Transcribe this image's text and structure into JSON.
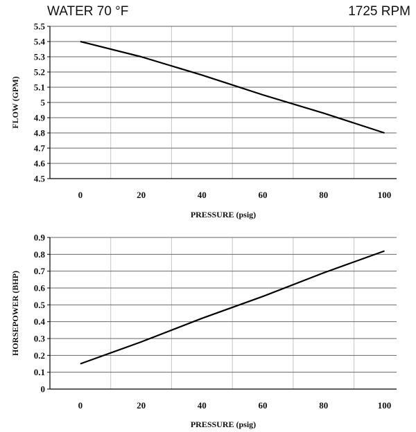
{
  "header": {
    "left": "WATER 70  °F",
    "right": "1725 RPM"
  },
  "chart_data": [
    {
      "type": "line",
      "xlabel": "PRESSURE (psig)",
      "ylabel": "FLOW (GPM)",
      "xlim": [
        -10,
        104
      ],
      "ylim": [
        4.5,
        5.5
      ],
      "x_ticks": [
        0,
        20,
        40,
        60,
        80,
        100
      ],
      "y_ticks": [
        4.5,
        4.6,
        4.7,
        4.8,
        4.9,
        5,
        5.1,
        5.2,
        5.3,
        5.4,
        5.5
      ],
      "y_tick_labels": [
        "4.5",
        "4.6",
        "4.7",
        "4.8",
        "4.9",
        "5",
        "5.1",
        "5.2",
        "5.3",
        "5.4",
        "5.5"
      ],
      "grid": true,
      "series": [
        {
          "x": [
            0,
            20,
            40,
            60,
            80,
            100
          ],
          "y": [
            5.4,
            5.3,
            5.18,
            5.05,
            4.93,
            4.8
          ],
          "color": "#000000"
        }
      ]
    },
    {
      "type": "line",
      "xlabel": "PRESSURE (psig)",
      "ylabel": "HORSEPOWER (BHP)",
      "xlim": [
        -10,
        104
      ],
      "ylim": [
        0,
        0.9
      ],
      "x_ticks": [
        0,
        20,
        40,
        60,
        80,
        100
      ],
      "y_ticks": [
        0,
        0.1,
        0.2,
        0.3,
        0.4,
        0.5,
        0.6,
        0.7,
        0.8,
        0.9
      ],
      "y_tick_labels": [
        "0",
        "0.1",
        "0.2",
        "0.3",
        "0.4",
        "0.5",
        "0.6",
        "0.7",
        "0.8",
        "0.9"
      ],
      "grid": true,
      "series": [
        {
          "x": [
            0,
            20,
            40,
            60,
            80,
            100
          ],
          "y": [
            0.15,
            0.28,
            0.42,
            0.55,
            0.69,
            0.82
          ],
          "color": "#000000"
        }
      ]
    }
  ]
}
